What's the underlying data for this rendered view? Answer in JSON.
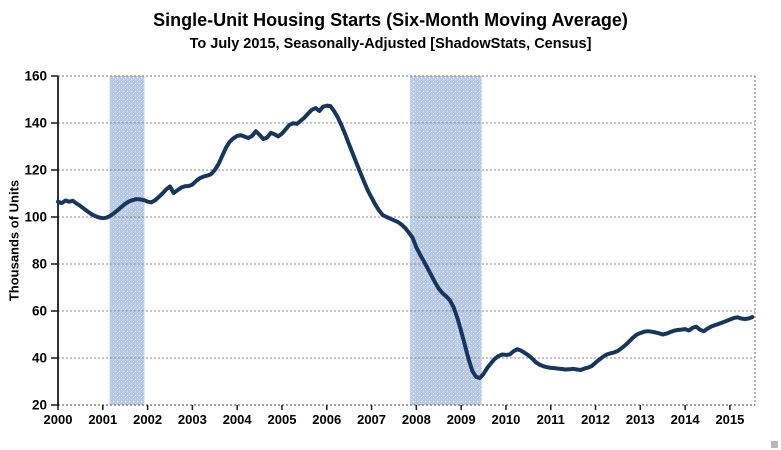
{
  "chart": {
    "title": "Single-Unit Housing Starts (Six-Month Moving Average)",
    "subtitle": "To July 2015, Seasonally-Adjusted [ShadowStats, Census]",
    "ylabel": "Thousands of Units"
  },
  "chart_data": {
    "type": "line",
    "title": "Single-Unit Housing Starts (Six-Month Moving Average)",
    "subtitle": "To July 2015, Seasonally-Adjusted [ShadowStats, Census]",
    "xlabel": "",
    "ylabel": "Thousands of Units",
    "xlim": [
      2000,
      2015.56
    ],
    "ylim": [
      20,
      160
    ],
    "x_ticks": [
      2000,
      2001,
      2002,
      2003,
      2004,
      2005,
      2006,
      2007,
      2008,
      2009,
      2010,
      2011,
      2012,
      2013,
      2014,
      2015
    ],
    "y_ticks": [
      20,
      40,
      60,
      80,
      100,
      120,
      140,
      160
    ],
    "grid": true,
    "legend": "none",
    "line_color": "#17365D",
    "band_color": "#BACBE8",
    "grid_color": "#8c8c8c",
    "recession_bands": [
      [
        2001.15,
        2001.93
      ],
      [
        2007.86,
        2009.46
      ]
    ],
    "series": [
      {
        "name": "Single-unit housing starts, six-month moving average (thousands of units)",
        "x_start": 2000.0,
        "x_step_years": 0.0833333,
        "x_end": 2015.5,
        "values": [
          106.5,
          105.9,
          107.0,
          106.5,
          106.9,
          105.7,
          104.7,
          103.5,
          102.3,
          101.2,
          100.4,
          99.8,
          99.5,
          99.7,
          100.5,
          101.6,
          102.9,
          104.3,
          105.6,
          106.6,
          107.2,
          107.6,
          107.5,
          107.2,
          106.5,
          106.2,
          107.1,
          108.5,
          110.0,
          111.8,
          113.0,
          110.2,
          111.4,
          112.5,
          113.1,
          113.2,
          113.8,
          115.3,
          116.5,
          117.2,
          117.6,
          118.2,
          120.0,
          122.5,
          126.0,
          129.5,
          132.0,
          133.5,
          134.5,
          134.8,
          134.2,
          133.6,
          134.5,
          136.5,
          135.0,
          133.2,
          133.8,
          135.8,
          135.2,
          134.3,
          135.5,
          137.3,
          139.2,
          139.9,
          139.6,
          140.9,
          142.3,
          144.0,
          145.6,
          146.4,
          145.1,
          146.9,
          147.4,
          147.2,
          145.0,
          142.2,
          138.8,
          135.0,
          130.8,
          126.8,
          122.8,
          118.8,
          115.0,
          111.3,
          108.2,
          105.3,
          102.8,
          100.8,
          100.0,
          99.3,
          98.6,
          97.9,
          96.8,
          95.3,
          93.3,
          91.2,
          87.0,
          84.0,
          81.2,
          78.2,
          75.2,
          72.2,
          69.5,
          67.6,
          66.2,
          64.5,
          61.5,
          57.0,
          51.5,
          45.5,
          39.5,
          34.5,
          32.0,
          31.5,
          33.2,
          35.8,
          37.8,
          39.6,
          40.8,
          41.5,
          41.3,
          41.5,
          42.8,
          43.7,
          43.2,
          42.2,
          41.2,
          39.8,
          38.2,
          37.2,
          36.5,
          36.1,
          35.8,
          35.7,
          35.5,
          35.3,
          35.1,
          35.2,
          35.4,
          35.1,
          34.9,
          35.5,
          35.9,
          36.6,
          38.0,
          39.3,
          40.5,
          41.5,
          42.0,
          42.4,
          43.0,
          44.2,
          45.5,
          47.0,
          48.6,
          49.9,
          50.6,
          51.2,
          51.4,
          51.2,
          50.9,
          50.5,
          50.0,
          50.4,
          51.0,
          51.6,
          51.9,
          52.1,
          52.3,
          51.7,
          52.8,
          53.3,
          52.0,
          51.4,
          52.5,
          53.4,
          54.0,
          54.5,
          55.1,
          55.7,
          56.4,
          57.0,
          57.3,
          56.8,
          56.6,
          56.8,
          57.4
        ]
      }
    ]
  }
}
